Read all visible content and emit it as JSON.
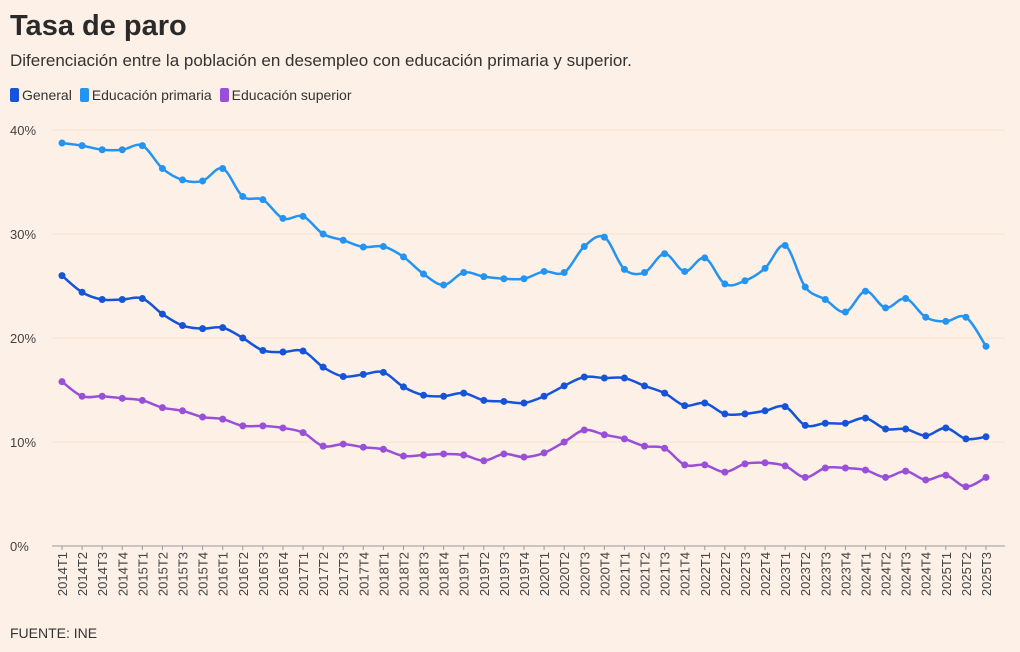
{
  "title": "Tasa de paro",
  "subtitle": "Diferenciación entre la población en desempleo con educación primaria y superior.",
  "source": "FUENTE: INE",
  "chart_data": {
    "type": "line",
    "title": "Tasa de paro",
    "ylim": [
      0,
      40
    ],
    "yticks": [
      "0%",
      "10%",
      "20%",
      "30%",
      "40%"
    ],
    "ytick_values": [
      0,
      10,
      20,
      30,
      40
    ],
    "grid": true,
    "legend_position": "top-left",
    "categories": [
      "2014T1",
      "2014T2",
      "2014T3",
      "2014T4",
      "2015T1",
      "2015T2",
      "2015T3",
      "2015T4",
      "2016T1",
      "2016T2",
      "2016T3",
      "2016T4",
      "2017T1",
      "2017T2",
      "2017T3",
      "2017T4",
      "2018T1",
      "2018T2",
      "2018T3",
      "2018T4",
      "2019T1",
      "2019T2",
      "2019T3",
      "2019T4",
      "2020T1",
      "2020T2",
      "2020T3",
      "2020T4",
      "2021T1",
      "2021T2",
      "2021T3",
      "2021T4",
      "2022T1",
      "2022T2",
      "2022T3",
      "2022T4",
      "2023T1",
      "2023T2",
      "2023T3",
      "2023T4",
      "2024T1",
      "2024T2",
      "2024T3",
      "2024T4",
      "2025T1",
      "2025T2",
      "2025T3"
    ],
    "series": [
      {
        "name": "General",
        "color": "#1553d9",
        "values": [
          26.0,
          24.4,
          23.7,
          23.7,
          23.8,
          22.3,
          21.2,
          20.9,
          21.0,
          20.0,
          18.8,
          18.65,
          18.75,
          17.2,
          16.3,
          16.5,
          16.7,
          15.3,
          14.5,
          14.4,
          14.7,
          14.0,
          13.9,
          13.75,
          14.4,
          15.4,
          16.25,
          16.15,
          16.15,
          15.4,
          14.7,
          13.5,
          13.75,
          12.7,
          12.7,
          13.0,
          13.4,
          11.6,
          11.8,
          11.8,
          12.3,
          11.25,
          11.25,
          10.6,
          11.35,
          10.3,
          10.5
        ]
      },
      {
        "name": "Educación primaria",
        "color": "#2494f2",
        "values": [
          38.75,
          38.5,
          38.1,
          38.1,
          38.5,
          36.3,
          35.2,
          35.1,
          36.3,
          33.6,
          33.3,
          31.5,
          31.7,
          30.0,
          29.4,
          28.75,
          28.8,
          27.8,
          26.15,
          25.1,
          26.3,
          25.9,
          25.7,
          25.7,
          26.4,
          26.3,
          28.8,
          29.7,
          26.6,
          26.3,
          28.1,
          26.4,
          27.7,
          25.2,
          25.5,
          26.7,
          28.9,
          24.9,
          23.7,
          22.5,
          24.5,
          22.9,
          23.8,
          22.0,
          21.6,
          22.0,
          19.2
        ]
      },
      {
        "name": "Educación superior",
        "color": "#9a4fd8",
        "values": [
          15.8,
          14.4,
          14.4,
          14.2,
          14.0,
          13.3,
          13.0,
          12.4,
          12.2,
          11.55,
          11.55,
          11.35,
          10.9,
          9.6,
          9.8,
          9.5,
          9.3,
          8.65,
          8.75,
          8.85,
          8.75,
          8.2,
          8.85,
          8.55,
          8.95,
          10.0,
          11.15,
          10.7,
          10.3,
          9.6,
          9.4,
          7.8,
          7.8,
          7.1,
          7.9,
          8.0,
          7.7,
          6.6,
          7.5,
          7.5,
          7.3,
          6.6,
          7.2,
          6.35,
          6.8,
          5.7,
          6.6
        ]
      }
    ]
  }
}
